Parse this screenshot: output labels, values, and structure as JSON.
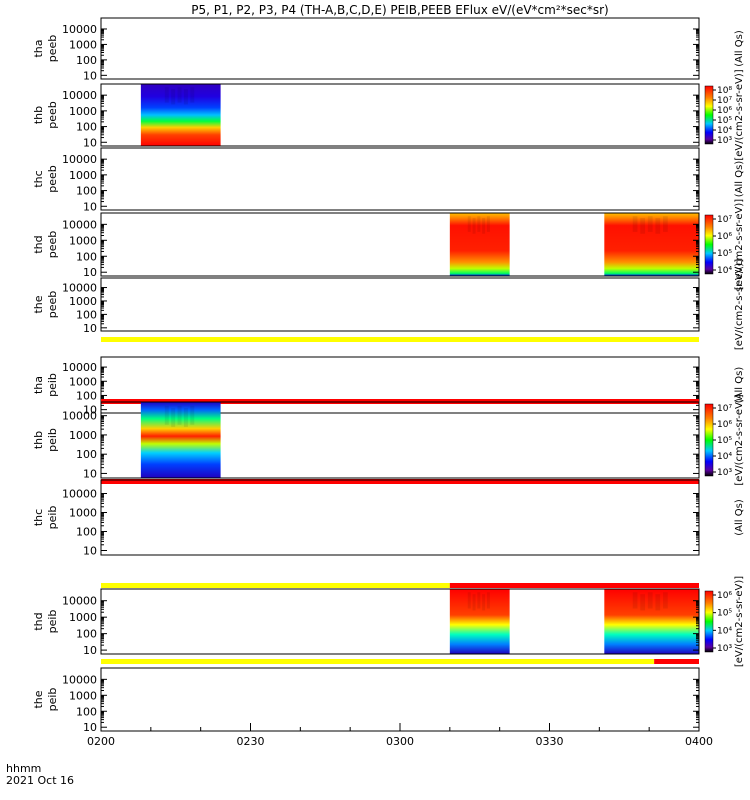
{
  "title": "P5, P1, P2, P3, P4 (TH-A,B,C,D,E) PEIB,PEEB EFlux eV/(eV*cm²*sec*sr)",
  "footer": {
    "time_format": "hhmm",
    "date": "2021 Oct 16"
  },
  "chart_data": {
    "type": "heatmap",
    "x_unit": "UT",
    "x_ticks": [
      "0200",
      "0230",
      "0300",
      "0330",
      "0400"
    ],
    "x_range": [
      "0200",
      "0400"
    ],
    "y_scale": "log",
    "y_ticks": [
      "10",
      "100",
      "1000",
      "10000"
    ],
    "colormap": "rainbow",
    "panels": [
      {
        "probe": "tha",
        "species": "peeb",
        "ylabel": [
          "tha",
          "peeb"
        ],
        "segments": [],
        "status_bar": null,
        "colorbar_label": "(All Qs)",
        "colorbar_ticks": []
      },
      {
        "probe": "thb",
        "species": "peeb",
        "ylabel": [
          "thb",
          "peeb"
        ],
        "segments": [
          {
            "start": "0208",
            "end": "0224"
          }
        ],
        "status_bar": null,
        "colorbar_label": "[eV/(cm2-s-sr-eV)]",
        "colorbar_ticks": [
          "10³",
          "10⁴",
          "10⁵",
          "10⁶",
          "10⁷",
          "10⁸"
        ]
      },
      {
        "probe": "thc",
        "species": "peeb",
        "ylabel": [
          "thc",
          "peeb"
        ],
        "segments": [],
        "status_bar": null,
        "colorbar_label": "(All Qs)",
        "colorbar_ticks": []
      },
      {
        "probe": "thd",
        "species": "peeb",
        "ylabel": [
          "thd",
          "peeb"
        ],
        "segments": [
          {
            "start": "0310",
            "end": "0322"
          },
          {
            "start": "0341",
            "end": "0400"
          }
        ],
        "status_bar": null,
        "colorbar_label": "[eV/(cm2-s-sr-eV)]",
        "colorbar_ticks": [
          "10⁴",
          "10⁵",
          "10⁶",
          "10⁷"
        ]
      },
      {
        "probe": "the",
        "species": "peeb",
        "ylabel": [
          "the",
          "peeb"
        ],
        "segments": [],
        "status_bar": [
          {
            "start": "0200",
            "end": "0400",
            "color": "#ffff00"
          }
        ],
        "colorbar_label": "[eV/(cm2-s-sr-eV)]",
        "colorbar_ticks": []
      },
      {
        "probe": "tha",
        "species": "peib",
        "ylabel": [
          "tha",
          "peib"
        ],
        "segments": [],
        "status_bar": [
          {
            "start": "0200",
            "end": "0400",
            "color": "#ff0000"
          }
        ],
        "colorbar_label": "(All Qs)",
        "colorbar_ticks": []
      },
      {
        "probe": "thb",
        "species": "peib",
        "ylabel": [
          "thb",
          "peib"
        ],
        "segments": [
          {
            "start": "0208",
            "end": "0224"
          }
        ],
        "status_bar": [
          {
            "start": "0200",
            "end": "0400",
            "color": "#ff0000"
          }
        ],
        "colorbar_label": "[eV/(cm2-s-sr-eV)]",
        "colorbar_ticks": [
          "10³",
          "10⁴",
          "10⁵",
          "10⁶",
          "10⁷"
        ]
      },
      {
        "probe": "thc",
        "species": "peib",
        "ylabel": [
          "thc",
          "peib"
        ],
        "segments": [],
        "status_bar": [
          {
            "start": "0200",
            "end": "0310",
            "color": "#ffff00"
          },
          {
            "start": "0310",
            "end": "0400",
            "color": "#ff0000"
          }
        ],
        "colorbar_label": "(All Qs)",
        "colorbar_ticks": []
      },
      {
        "probe": "thd",
        "species": "peib",
        "ylabel": [
          "thd",
          "peib"
        ],
        "segments": [
          {
            "start": "0310",
            "end": "0322"
          },
          {
            "start": "0341",
            "end": "0400"
          }
        ],
        "status_bar": [
          {
            "start": "0200",
            "end": "0351",
            "color": "#ffff00"
          },
          {
            "start": "0351",
            "end": "0400",
            "color": "#ff0000"
          }
        ],
        "colorbar_label": "[eV/(cm2-s-sr-eV)]",
        "colorbar_ticks": [
          "10³",
          "10⁴",
          "10⁵",
          "10⁶"
        ]
      },
      {
        "probe": "the",
        "species": "peib",
        "ylabel": [
          "the",
          "peib"
        ],
        "segments": [],
        "status_bar": null,
        "colorbar_label": "",
        "colorbar_ticks": []
      }
    ]
  }
}
